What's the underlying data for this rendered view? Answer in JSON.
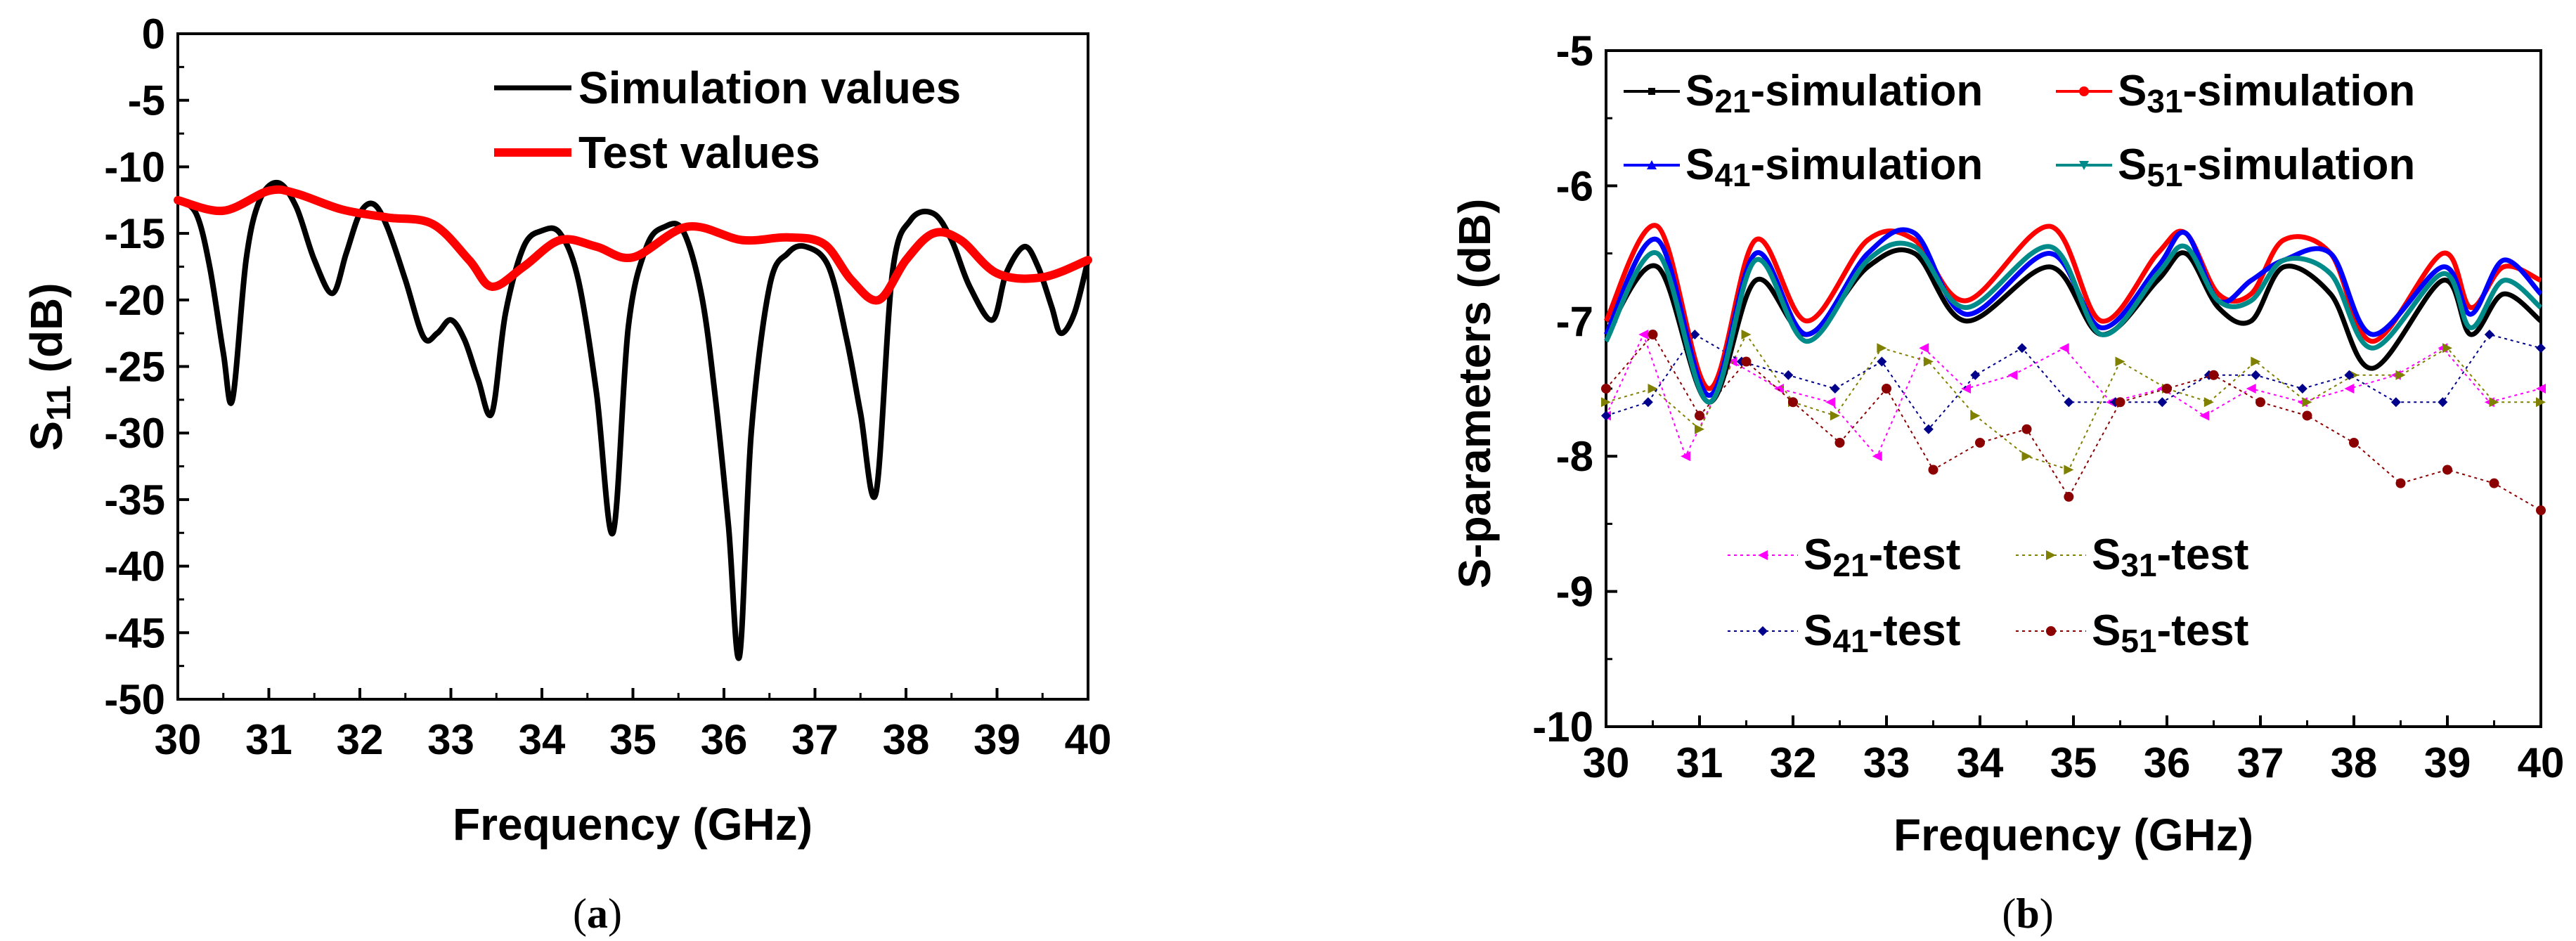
{
  "chart_data": [
    {
      "panel": "a",
      "type": "line",
      "caption": "a",
      "xlabel": "Frequency (GHz)",
      "ylabel_main": "S",
      "ylabel_sub": "11",
      "ylabel_unit": " (dB)",
      "xlim": [
        30,
        40
      ],
      "ylim": [
        -50,
        0
      ],
      "xticks": [
        "30",
        "31",
        "32",
        "33",
        "34",
        "35",
        "36",
        "37",
        "38",
        "39",
        "40"
      ],
      "yticks": [
        "0",
        "-5",
        "-10",
        "-15",
        "-20",
        "-25",
        "-30",
        "-35",
        "-40",
        "-45",
        "-50"
      ],
      "legend": [
        "Simulation values",
        "Test values"
      ],
      "series": [
        {
          "name": "Simulation values",
          "color": "#000000",
          "x": [
            30.0,
            30.2,
            30.35,
            30.5,
            30.6,
            30.75,
            30.9,
            31.1,
            31.3,
            31.5,
            31.7,
            31.85,
            32.0,
            32.15,
            32.3,
            32.5,
            32.7,
            32.85,
            33.0,
            33.15,
            33.3,
            33.45,
            33.6,
            33.8,
            34.0,
            34.2,
            34.4,
            34.6,
            34.78,
            34.95,
            35.15,
            35.35,
            35.55,
            35.75,
            35.9,
            36.05,
            36.17,
            36.3,
            36.5,
            36.7,
            36.9,
            37.15,
            37.35,
            37.5,
            37.67,
            37.85,
            38.05,
            38.3,
            38.5,
            38.7,
            38.95,
            39.1,
            39.3,
            39.45,
            39.6,
            39.7,
            39.85,
            40.0
          ],
          "y": [
            -12.5,
            -13.5,
            -17.5,
            -24.0,
            -27.5,
            -17.0,
            -12.5,
            -11.2,
            -13.0,
            -17.0,
            -19.5,
            -16.5,
            -13.5,
            -12.8,
            -14.5,
            -18.5,
            -22.8,
            -22.5,
            -21.5,
            -23.0,
            -26.0,
            -28.5,
            -21.0,
            -16.0,
            -14.8,
            -15.0,
            -18.5,
            -27.0,
            -37.5,
            -22.0,
            -16.0,
            -14.5,
            -14.8,
            -19.5,
            -27.0,
            -37.0,
            -46.8,
            -30.0,
            -19.0,
            -16.5,
            -16.0,
            -17.5,
            -23.0,
            -28.5,
            -34.5,
            -18.0,
            -14.0,
            -13.5,
            -15.5,
            -19.0,
            -21.5,
            -18.0,
            -16.0,
            -17.5,
            -20.5,
            -22.5,
            -21.0,
            -17.0
          ]
        },
        {
          "name": "Test values",
          "color": "#ff0000",
          "x": [
            30.0,
            30.5,
            31.0,
            31.3,
            31.8,
            32.3,
            32.8,
            33.2,
            33.45,
            33.8,
            34.2,
            34.6,
            35.0,
            35.6,
            36.2,
            36.7,
            37.1,
            37.4,
            37.7,
            38.0,
            38.3,
            38.6,
            39.0,
            39.5,
            40.0
          ],
          "y": [
            -12.5,
            -13.3,
            -11.8,
            -12.0,
            -13.2,
            -13.8,
            -14.3,
            -17.0,
            -19.0,
            -17.5,
            -15.5,
            -16.0,
            -16.8,
            -14.5,
            -15.5,
            -15.3,
            -15.8,
            -18.5,
            -20.0,
            -17.0,
            -15.0,
            -15.5,
            -18.0,
            -18.3,
            -17.0
          ]
        }
      ]
    },
    {
      "panel": "b",
      "type": "line",
      "caption": "b",
      "xlabel": "Frequency (GHz)",
      "ylabel": "S-parameters (dB)",
      "xlim": [
        30,
        40
      ],
      "ylim": [
        -10,
        -5
      ],
      "xticks": [
        "30",
        "31",
        "32",
        "33",
        "34",
        "35",
        "36",
        "37",
        "38",
        "39",
        "40"
      ],
      "yticks": [
        "-5",
        "-6",
        "-7",
        "-8",
        "-9",
        "-10"
      ],
      "legend": [
        {
          "sub": "21",
          "text": "-simulation"
        },
        {
          "sub": "31",
          "text": "-simulation"
        },
        {
          "sub": "41",
          "text": "-simulation"
        },
        {
          "sub": "51",
          "text": "-simulation"
        },
        {
          "sub": "21",
          "text": "-test"
        },
        {
          "sub": "31",
          "text": "-test"
        },
        {
          "sub": "41",
          "text": "-test"
        },
        {
          "sub": "51",
          "text": "-test"
        }
      ],
      "x": [
        30.0,
        30.55,
        31.1,
        31.6,
        32.15,
        32.8,
        33.3,
        33.85,
        34.75,
        35.3,
        35.9,
        36.2,
        36.55,
        36.9,
        37.25,
        37.75,
        38.2,
        38.95,
        39.25,
        39.6,
        40.0
      ],
      "series": [
        {
          "name": "S21-simulation",
          "color": "#000000",
          "y": [
            -7.1,
            -6.6,
            -7.6,
            -6.7,
            -7.1,
            -6.6,
            -6.5,
            -7.0,
            -6.6,
            -7.1,
            -6.7,
            -6.5,
            -6.9,
            -7.0,
            -6.6,
            -6.8,
            -7.35,
            -6.7,
            -7.1,
            -6.8,
            -7.0
          ]
        },
        {
          "name": "S31-simulation",
          "color": "#ff0000",
          "y": [
            -7.0,
            -6.3,
            -7.5,
            -6.4,
            -7.0,
            -6.4,
            -6.4,
            -6.85,
            -6.3,
            -7.0,
            -6.5,
            -6.35,
            -6.8,
            -6.8,
            -6.4,
            -6.5,
            -7.15,
            -6.5,
            -6.9,
            -6.6,
            -6.7
          ]
        },
        {
          "name": "S41-simulation",
          "color": "#0000ff",
          "y": [
            -7.1,
            -6.4,
            -7.55,
            -6.5,
            -7.1,
            -6.5,
            -6.35,
            -6.95,
            -6.5,
            -7.05,
            -6.6,
            -6.35,
            -6.85,
            -6.7,
            -6.55,
            -6.5,
            -7.1,
            -6.6,
            -6.95,
            -6.55,
            -6.8
          ]
        },
        {
          "name": "S51-simulation",
          "color": "#008b8b",
          "y": [
            -7.15,
            -6.5,
            -7.6,
            -6.55,
            -7.15,
            -6.55,
            -6.45,
            -6.9,
            -6.45,
            -7.1,
            -6.65,
            -6.45,
            -6.85,
            -6.85,
            -6.55,
            -6.65,
            -7.2,
            -6.65,
            -7.05,
            -6.7,
            -6.9
          ]
        }
      ],
      "test_series": [
        {
          "name": "S21-test",
          "color": "#ff00ff",
          "marker": "triangle-left",
          "x": [
            30.0,
            30.4,
            30.85,
            31.35,
            31.85,
            32.4,
            32.9,
            33.4,
            33.85,
            34.35,
            34.9,
            35.4,
            35.95,
            36.4,
            36.9,
            37.45,
            37.95,
            38.45,
            38.95,
            39.45,
            40.0
          ],
          "y": [
            -7.7,
            -7.1,
            -8.0,
            -7.3,
            -7.5,
            -7.6,
            -8.0,
            -7.2,
            -7.5,
            -7.4,
            -7.2,
            -7.6,
            -7.5,
            -7.7,
            -7.5,
            -7.6,
            -7.5,
            -7.4,
            -7.2,
            -7.6,
            -7.5
          ]
        },
        {
          "name": "S31-test",
          "color": "#808000",
          "marker": "triangle-right",
          "x": [
            30.0,
            30.5,
            31.0,
            31.5,
            32.0,
            32.45,
            32.95,
            33.45,
            33.95,
            34.5,
            34.95,
            35.5,
            36.0,
            36.45,
            36.95,
            37.5,
            38.0,
            38.5,
            39.0,
            39.5,
            40.0
          ],
          "y": [
            -7.6,
            -7.5,
            -7.8,
            -7.1,
            -7.6,
            -7.7,
            -7.2,
            -7.3,
            -7.7,
            -8.0,
            -8.1,
            -7.3,
            -7.5,
            -7.6,
            -7.3,
            -7.6,
            -7.4,
            -7.4,
            -7.2,
            -7.6,
            -7.6
          ]
        },
        {
          "name": "S41-test",
          "color": "#00008b",
          "marker": "diamond",
          "x": [
            30.0,
            30.45,
            30.95,
            31.45,
            31.95,
            32.45,
            32.95,
            33.45,
            33.95,
            34.45,
            34.95,
            35.45,
            35.95,
            36.45,
            36.95,
            37.45,
            37.95,
            38.45,
            38.95,
            39.45,
            40.0
          ],
          "y": [
            -7.7,
            -7.6,
            -7.1,
            -7.3,
            -7.4,
            -7.5,
            -7.3,
            -7.8,
            -7.4,
            -7.2,
            -7.6,
            -7.6,
            -7.6,
            -7.4,
            -7.4,
            -7.5,
            -7.4,
            -7.6,
            -7.6,
            -7.1,
            -7.2
          ]
        },
        {
          "name": "S51-test",
          "color": "#8b0000",
          "marker": "circle",
          "x": [
            30.0,
            30.5,
            31.0,
            31.5,
            32.0,
            32.5,
            33.0,
            33.5,
            34.0,
            34.5,
            34.95,
            35.5,
            36.0,
            36.5,
            37.0,
            37.5,
            38.0,
            38.5,
            39.0,
            39.5,
            40.0
          ],
          "y": [
            -7.5,
            -7.1,
            -7.7,
            -7.3,
            -7.6,
            -7.9,
            -7.5,
            -8.1,
            -7.9,
            -7.8,
            -8.3,
            -7.6,
            -7.5,
            -7.4,
            -7.6,
            -7.7,
            -7.9,
            -8.2,
            -8.1,
            -8.2,
            -8.4
          ]
        }
      ]
    }
  ]
}
